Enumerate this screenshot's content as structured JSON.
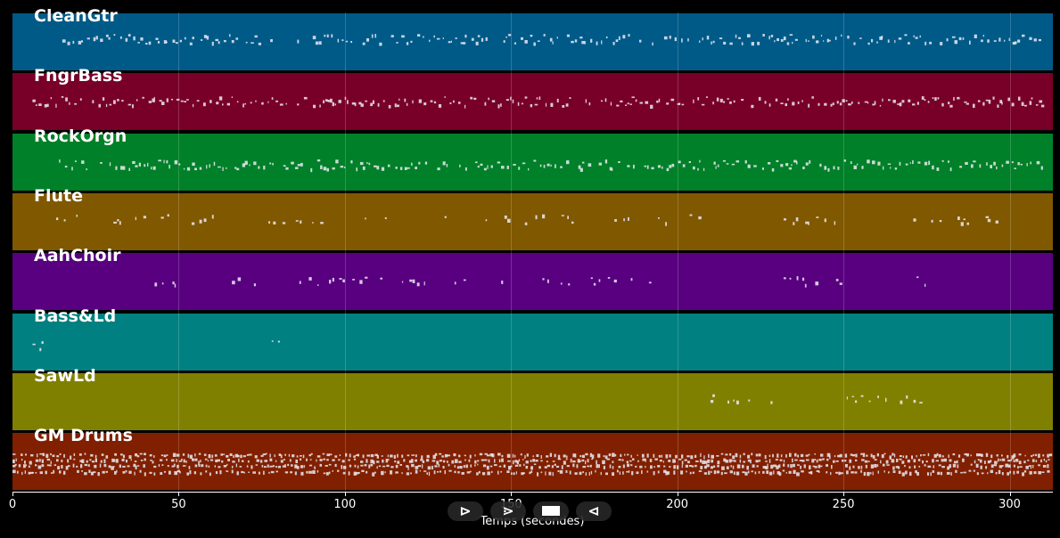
{
  "tracks": [
    {
      "name": "CleanGtr",
      "color": "#005a87",
      "note_density": 0.88,
      "active_ranges": [
        [
          15,
          78
        ],
        [
          85,
          310
        ]
      ]
    },
    {
      "name": "FngrBass",
      "color": "#780028",
      "note_density": 0.92,
      "active_ranges": [
        [
          6,
          310
        ]
      ]
    },
    {
      "name": "RockOrgn",
      "color": "#008028",
      "note_density": 0.9,
      "active_ranges": [
        [
          14,
          310
        ]
      ]
    },
    {
      "name": "Flute",
      "color": "#805800",
      "note_density": 0.5,
      "active_ranges": [
        [
          8,
          65
        ],
        [
          77,
          94
        ],
        [
          106,
          114
        ],
        [
          130,
          148
        ],
        [
          148,
          176
        ],
        [
          176,
          211
        ],
        [
          232,
          248
        ],
        [
          271,
          296
        ]
      ]
    },
    {
      "name": "AahChoir",
      "color": "#580080",
      "note_density": 0.55,
      "active_ranges": [
        [
          41,
          55
        ],
        [
          66,
          74
        ],
        [
          85,
          125
        ],
        [
          133,
          148
        ],
        [
          157,
          168
        ],
        [
          174,
          193
        ],
        [
          232,
          250
        ],
        [
          272,
          280
        ]
      ]
    },
    {
      "name": "Bass&Ld",
      "color": "#008080",
      "note_density": 0.7,
      "active_ranges": [
        [
          6,
          15
        ],
        [
          78,
          85
        ]
      ]
    },
    {
      "name": "SawLd",
      "color": "#808000",
      "note_density": 0.7,
      "active_ranges": [
        [
          210,
          230
        ],
        [
          251,
          273
        ]
      ]
    },
    {
      "name": "GM Drums",
      "color": "#802000",
      "note_density": 0.97,
      "active_ranges": [
        [
          0,
          312
        ]
      ]
    }
  ],
  "x_axis": {
    "label": "Temps (secondes)",
    "ticks": [
      0,
      50,
      100,
      150,
      200,
      250,
      300
    ],
    "range": [
      0,
      313
    ]
  },
  "controls": [
    {
      "name": "play-button",
      "icon": "play-icon",
      "glyph": "⊳"
    },
    {
      "name": "forward-button",
      "icon": "forward-icon",
      "glyph": "⋗"
    },
    {
      "name": "stop-button",
      "icon": "stop-icon",
      "glyph": ""
    },
    {
      "name": "back-button",
      "icon": "back-icon",
      "glyph": "⊲"
    }
  ]
}
